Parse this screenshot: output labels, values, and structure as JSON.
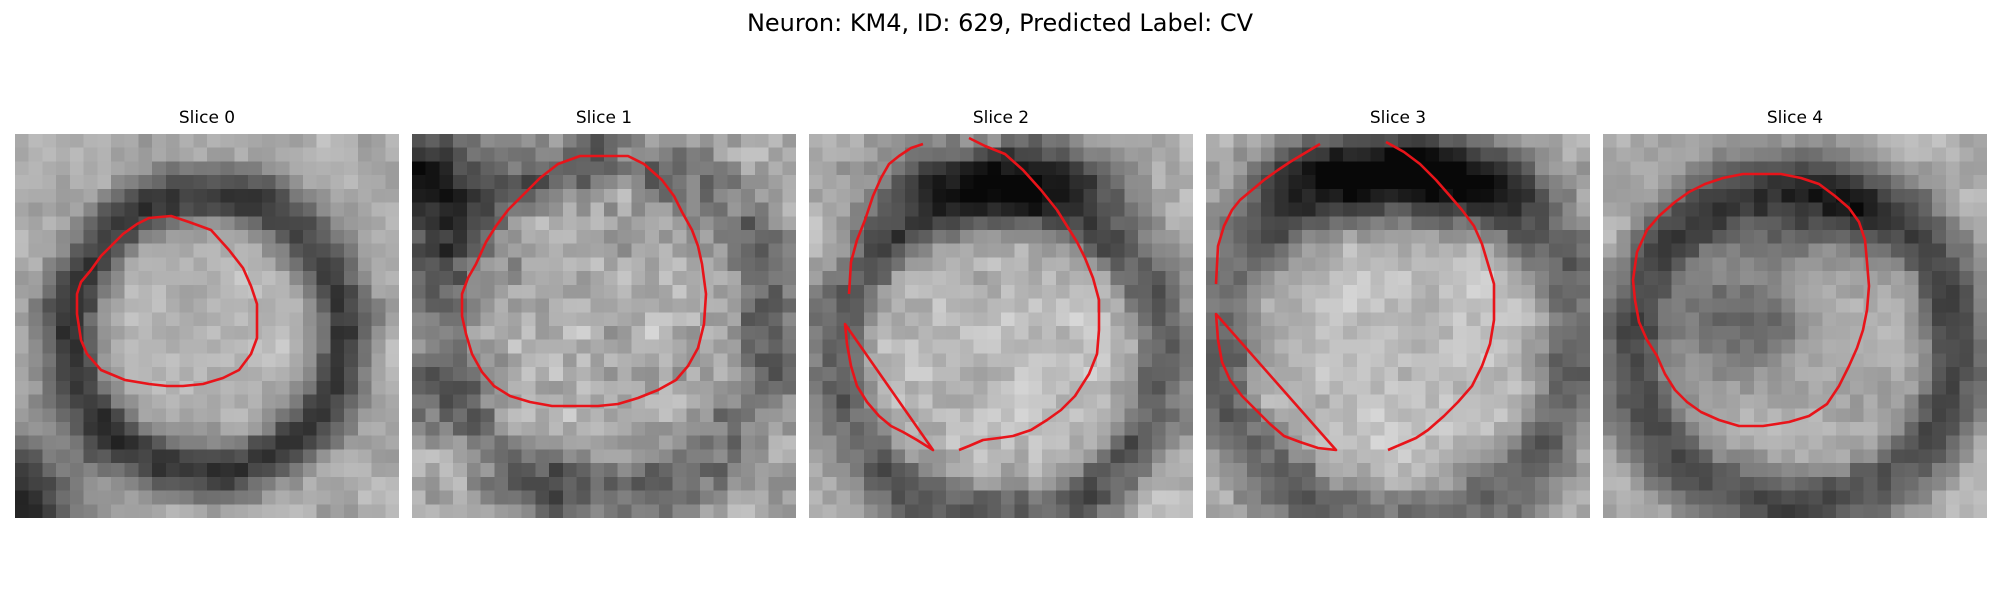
{
  "figure": {
    "title": "Neuron: KM4, ID: 629, Predicted Label: CV"
  },
  "slices": [
    {
      "title": "Slice 0",
      "tone": "dark-rim"
    },
    {
      "title": "Slice 1",
      "tone": "noisy"
    },
    {
      "title": "Slice 2",
      "tone": "dark-top"
    },
    {
      "title": "Slice 3",
      "tone": "dark-top"
    },
    {
      "title": "Slice 4",
      "tone": "dark-interior"
    }
  ],
  "style": {
    "contour_color": "#e8141a",
    "pixel_grid": 28
  }
}
